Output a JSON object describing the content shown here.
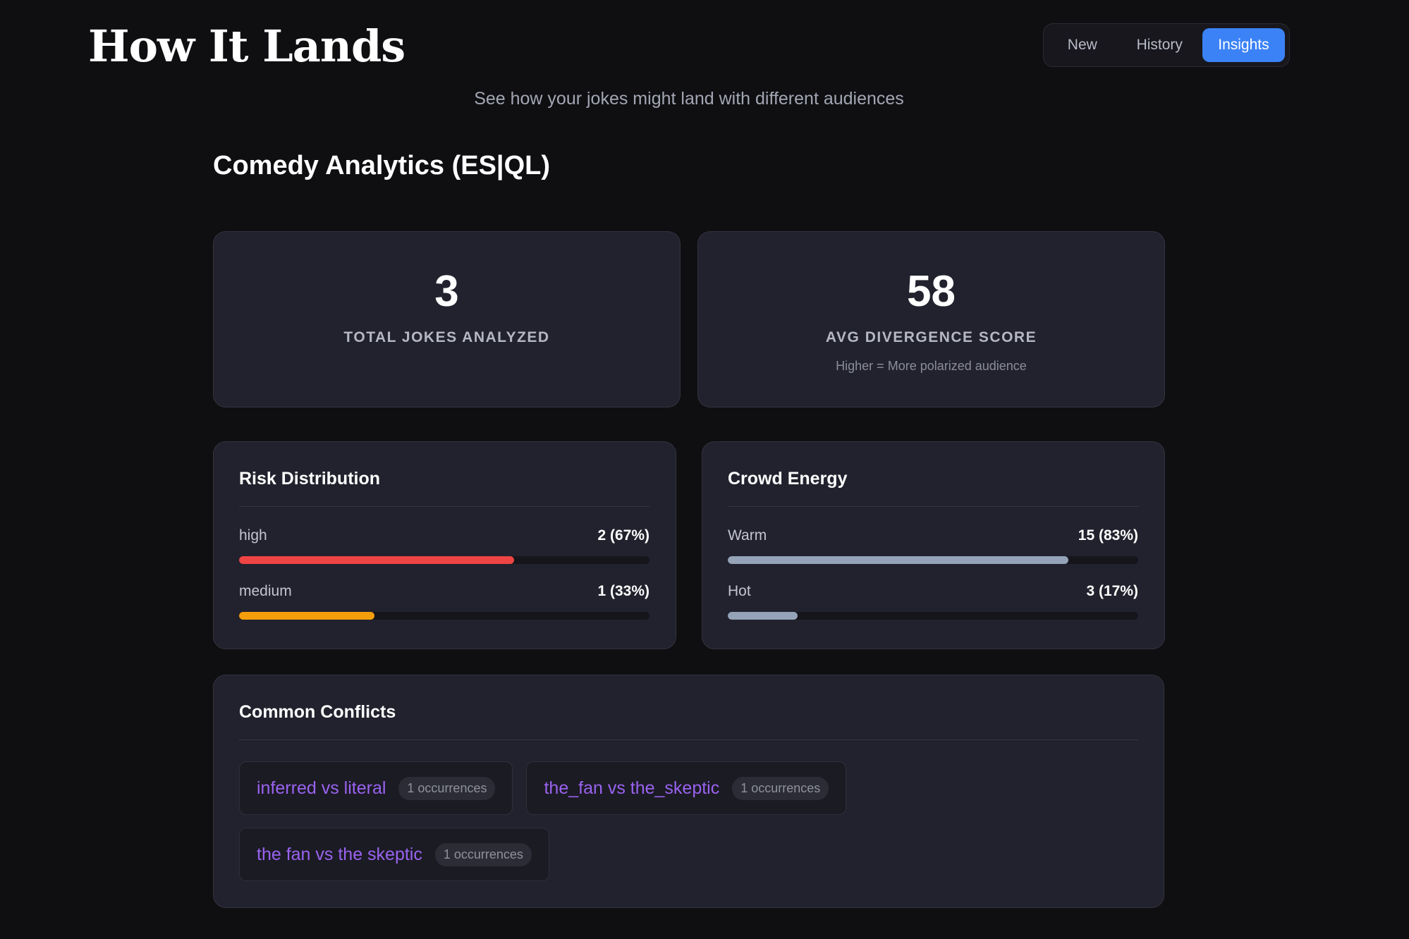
{
  "header": {
    "title": "How It Lands",
    "subtitle": "See how your jokes might land with different audiences"
  },
  "nav": {
    "tabs": [
      {
        "label": "New",
        "active": false
      },
      {
        "label": "History",
        "active": false
      },
      {
        "label": "Insights",
        "active": true
      }
    ]
  },
  "analytics": {
    "title": "Comedy Analytics (ES|QL)",
    "stats": [
      {
        "value": "3",
        "label": "TOTAL JOKES ANALYZED",
        "note": ""
      },
      {
        "value": "58",
        "label": "AVG DIVERGENCE SCORE",
        "note": "Higher = More polarized audience"
      }
    ],
    "risk_distribution": {
      "title": "Risk Distribution",
      "rows": [
        {
          "label": "high",
          "value": "2 (67%)",
          "fraction": 0.67,
          "color": "#ef4444"
        },
        {
          "label": "medium",
          "value": "1 (33%)",
          "fraction": 0.33,
          "color": "#f59e0b"
        }
      ]
    },
    "crowd_energy": {
      "title": "Crowd Energy",
      "rows": [
        {
          "label": "Warm",
          "value": "15 (83%)",
          "fraction": 0.83,
          "color": "#94a3b8"
        },
        {
          "label": "Hot",
          "value": "3 (17%)",
          "fraction": 0.17,
          "color": "#94a3b8"
        }
      ]
    },
    "conflicts": {
      "title": "Common Conflicts",
      "items": [
        {
          "text": "inferred vs literal",
          "badge": "1 occurrences"
        },
        {
          "text": "the_fan vs the_skeptic",
          "badge": "1 occurrences"
        },
        {
          "text": "the fan vs the skeptic",
          "badge": "1 occurrences"
        }
      ]
    }
  },
  "colors": {
    "accent": "#3b82f6",
    "conflict_text": "#9a63f0"
  }
}
